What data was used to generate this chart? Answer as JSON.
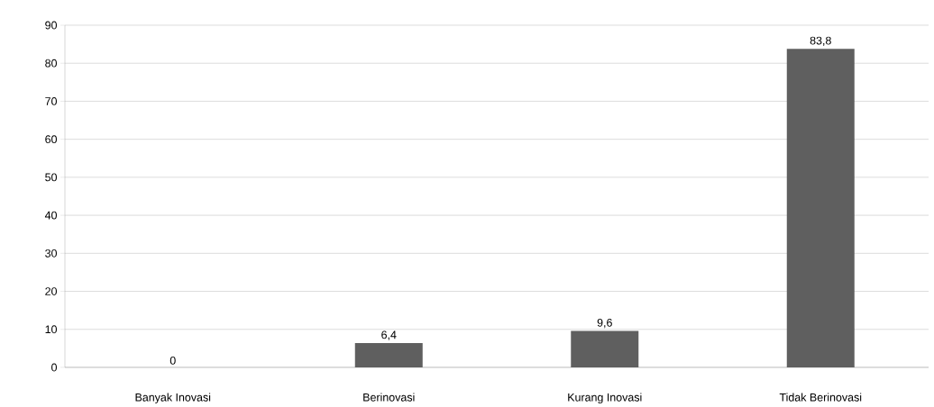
{
  "chart_data": {
    "type": "bar",
    "categories": [
      "Banyak Inovasi",
      "Berinovasi",
      "Kurang Inovasi",
      "Tidak Berinovasi"
    ],
    "values": [
      0,
      6.4,
      9.6,
      83.8
    ],
    "value_labels": [
      "0",
      "6,4",
      "9,6",
      "83,8"
    ],
    "color": "#5f5f5f",
    "ylim": [
      0,
      90
    ],
    "yticks": [
      0,
      10,
      20,
      30,
      40,
      50,
      60,
      70,
      80,
      90
    ],
    "grid": "y"
  }
}
